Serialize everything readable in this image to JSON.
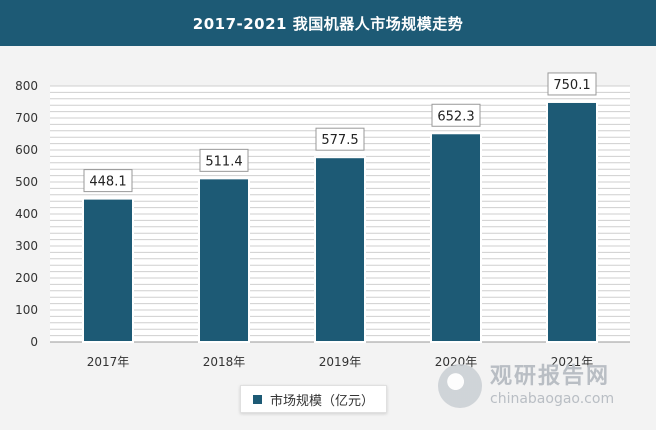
{
  "title": "2017-2021 我国机器人市场规模走势",
  "legend": {
    "label": "市场规模（亿元）"
  },
  "watermark": {
    "brand": "观研报告网",
    "url": "chinabaogao.com"
  },
  "colors": {
    "bar": "#1d5a75",
    "header": "#1d5a75"
  },
  "chart_data": {
    "type": "bar",
    "categories": [
      "2017年",
      "2018年",
      "2019年",
      "2020年",
      "2021年"
    ],
    "series": [
      {
        "name": "市场规模（亿元）",
        "values": [
          448.1,
          511.4,
          577.5,
          652.3,
          750.1
        ]
      }
    ],
    "data_labels": [
      "448.1",
      "511.4",
      "577.5",
      "652.3",
      "750.1"
    ],
    "ylim": [
      0,
      800
    ],
    "yticks": [
      0,
      100,
      200,
      300,
      400,
      500,
      600,
      700,
      800
    ],
    "grid": true,
    "legend_position": "bottom"
  }
}
